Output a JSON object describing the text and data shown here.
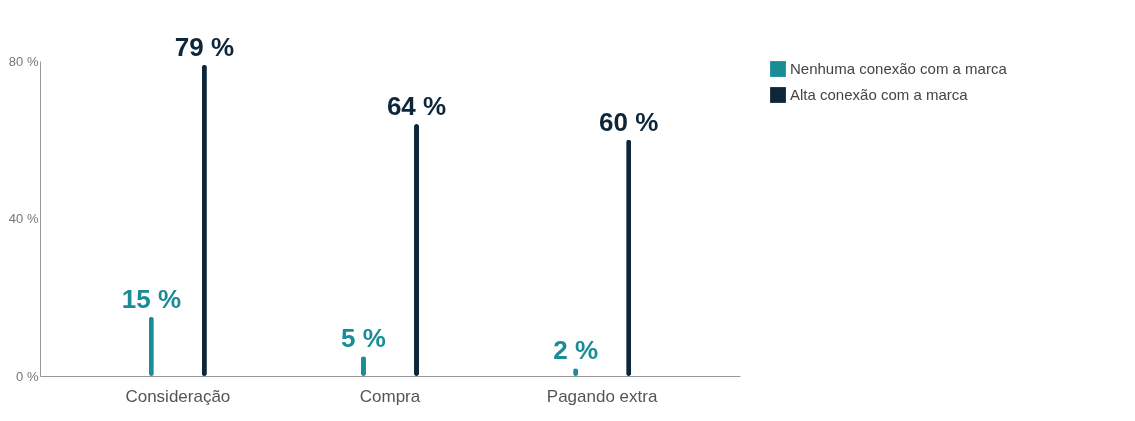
{
  "chart_data": {
    "type": "bar",
    "categories": [
      "Consideração",
      "Compra",
      "Pagando extra"
    ],
    "series": [
      {
        "name": "Nenhuma conexão com a marca",
        "color": "#1a8c98",
        "values": [
          15,
          5,
          2
        ],
        "value_labels": [
          "15 %",
          "5 %",
          "2 %"
        ]
      },
      {
        "name": "Alta conexão com a marca",
        "color": "#0d2639",
        "values": [
          79,
          64,
          60
        ],
        "value_labels": [
          "79 %",
          "64 %",
          "60 %"
        ]
      }
    ],
    "ylim": [
      0,
      80
    ],
    "yticks": [
      {
        "value": 0,
        "label": "0 %"
      },
      {
        "value": 40,
        "label": "40 %"
      },
      {
        "value": 80,
        "label": "80 %"
      }
    ],
    "grid": false,
    "legend": "top right"
  }
}
